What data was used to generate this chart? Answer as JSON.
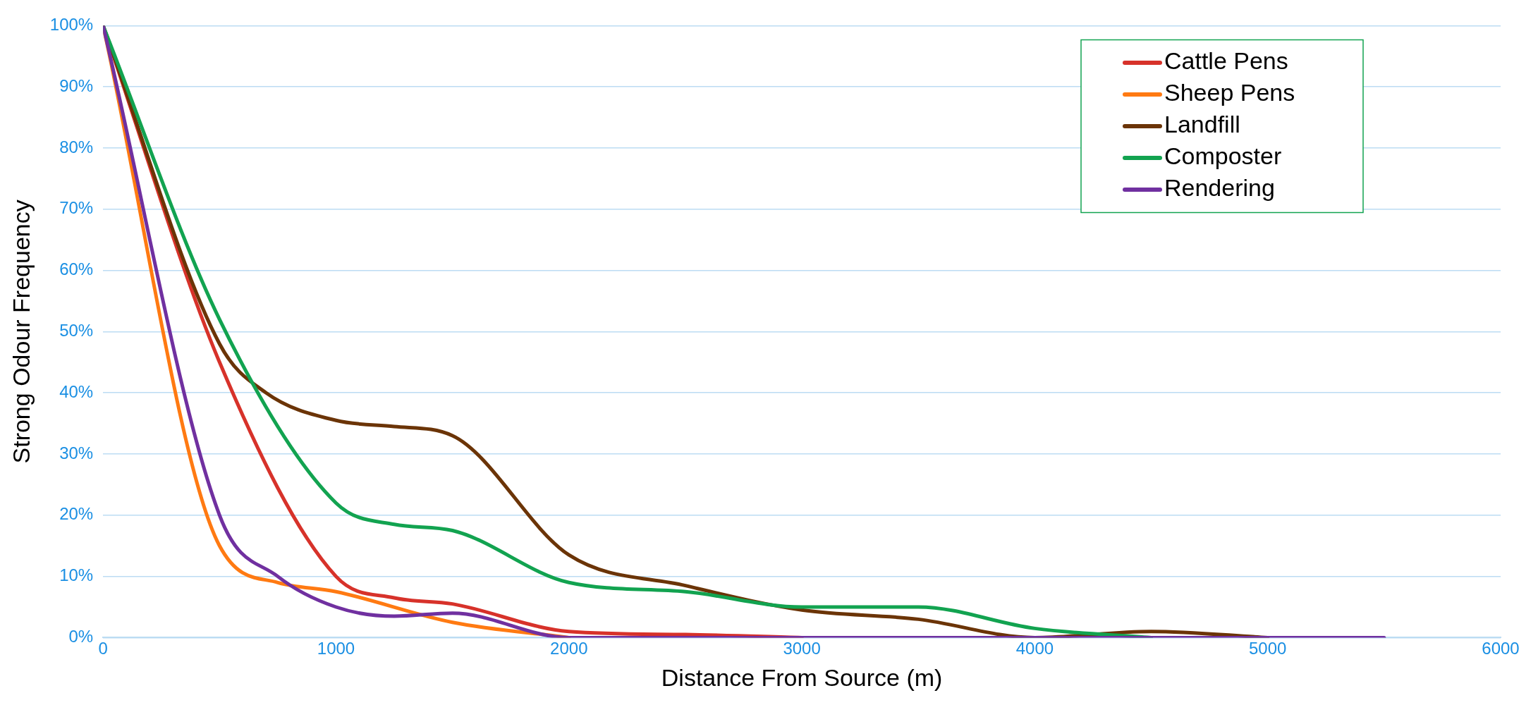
{
  "chart_data": {
    "type": "line",
    "xlabel": "Distance From Source (m)",
    "ylabel": "Strong Odour Frequency",
    "xlim": [
      0,
      6000
    ],
    "xticks": [
      0,
      1000,
      2000,
      3000,
      4000,
      5000,
      6000
    ],
    "ylim": [
      0,
      100
    ],
    "yticks": [
      {
        "value": 0,
        "label": "0%"
      },
      {
        "value": 10,
        "label": "10%"
      },
      {
        "value": 20,
        "label": "20%"
      },
      {
        "value": 30,
        "label": "30%"
      },
      {
        "value": 40,
        "label": "40%"
      },
      {
        "value": 50,
        "label": "50%"
      },
      {
        "value": 60,
        "label": "60%"
      },
      {
        "value": 70,
        "label": "70%"
      },
      {
        "value": 80,
        "label": "80%"
      },
      {
        "value": 90,
        "label": "90%"
      },
      {
        "value": 100,
        "label": "100%"
      }
    ],
    "grid": "y",
    "legend": "top right",
    "marker": "none",
    "line_style": "solid",
    "series": [
      {
        "name": "Cattle Pens",
        "color": "#d7322a",
        "x": [
          0,
          500,
          1000,
          1250,
          1500,
          2000,
          2500,
          3000
        ],
        "values": [
          100,
          45,
          10,
          6.5,
          5.5,
          1,
          0.5,
          0
        ]
      },
      {
        "name": "Sheep Pens",
        "color": "#ff7a12",
        "x": [
          0,
          500,
          750,
          1000,
          1500,
          2000
        ],
        "values": [
          100,
          15,
          9,
          7.5,
          2.5,
          0
        ]
      },
      {
        "name": "Landfill",
        "color": "#6b3407",
        "x": [
          0,
          500,
          700,
          1000,
          1250,
          1500,
          2000,
          2500,
          3000,
          3500,
          4000,
          4500,
          5000
        ],
        "values": [
          100,
          48,
          40,
          35.5,
          34.5,
          33,
          13.5,
          8.5,
          4.5,
          3,
          0,
          1,
          0
        ]
      },
      {
        "name": "Composter",
        "color": "#12a350",
        "x": [
          0,
          500,
          1000,
          1250,
          1500,
          2000,
          2500,
          3000,
          3500,
          4000,
          4500
        ],
        "values": [
          100,
          52,
          22,
          18.5,
          17.5,
          9,
          7.5,
          5,
          5,
          1.5,
          0
        ]
      },
      {
        "name": "Rendering",
        "color": "#7030a0",
        "x": [
          0,
          500,
          750,
          1000,
          1250,
          1500,
          2000,
          2500,
          3000,
          3500,
          4000,
          4500,
          5000,
          5500
        ],
        "values": [
          100,
          20,
          10,
          5,
          3.5,
          4,
          0,
          0,
          0,
          0,
          0,
          0,
          0,
          0
        ]
      }
    ]
  }
}
